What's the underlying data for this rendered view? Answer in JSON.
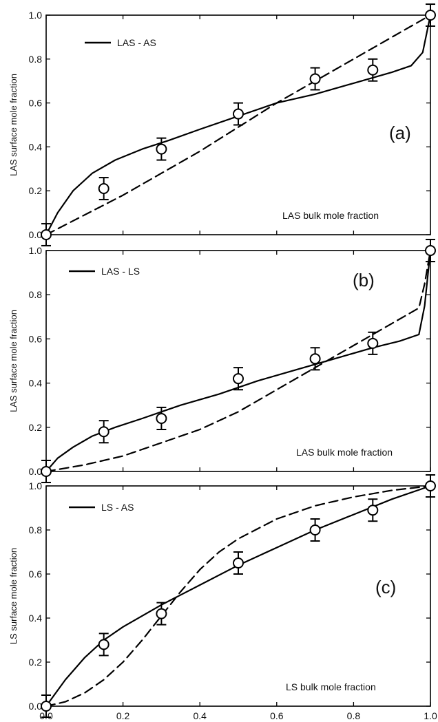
{
  "chart_data": [
    {
      "type": "line",
      "panel_label": "(a)",
      "legend_label": "LAS - AS",
      "ylabel": "LAS surface mole fraction",
      "xlabel_inset": "LAS bulk mole fraction",
      "xlim": [
        0,
        1
      ],
      "ylim": [
        0,
        1
      ],
      "yticks": [
        "0.0",
        "0.2",
        "0.4",
        "0.6",
        "0.8",
        "1.0"
      ],
      "legend_position": "top-left",
      "experimental": {
        "x": [
          0.0,
          0.15,
          0.3,
          0.5,
          0.7,
          0.85,
          1.0
        ],
        "y": [
          0.0,
          0.21,
          0.39,
          0.55,
          0.71,
          0.75,
          1.0
        ],
        "err": [
          0.05,
          0.05,
          0.05,
          0.05,
          0.05,
          0.05,
          0.05
        ]
      },
      "series": [
        {
          "style": "solid",
          "x": [
            0.0,
            0.03,
            0.07,
            0.12,
            0.18,
            0.25,
            0.32,
            0.4,
            0.5,
            0.6,
            0.7,
            0.8,
            0.9,
            0.95,
            0.98,
            1.0
          ],
          "y": [
            0.0,
            0.1,
            0.2,
            0.28,
            0.34,
            0.39,
            0.43,
            0.48,
            0.54,
            0.6,
            0.64,
            0.69,
            0.74,
            0.77,
            0.83,
            1.0
          ]
        },
        {
          "style": "dashed",
          "x": [
            0.0,
            0.2,
            0.4,
            0.6,
            0.8,
            1.0
          ],
          "y": [
            0.0,
            0.18,
            0.38,
            0.6,
            0.8,
            1.0
          ]
        }
      ]
    },
    {
      "type": "line",
      "panel_label": "(b)",
      "legend_label": "LAS - LS",
      "ylabel": "LAS surface mole fraction",
      "xlabel_inset": "LAS bulk mole fraction",
      "xlim": [
        0,
        1
      ],
      "ylim": [
        0,
        1
      ],
      "yticks": [
        "0.0",
        "0.2",
        "0.4",
        "0.6",
        "0.8",
        "1.0"
      ],
      "legend_position": "top-left",
      "experimental": {
        "x": [
          0.0,
          0.15,
          0.3,
          0.5,
          0.7,
          0.85,
          1.0
        ],
        "y": [
          0.0,
          0.18,
          0.24,
          0.42,
          0.51,
          0.58,
          1.0
        ],
        "err": [
          0.05,
          0.05,
          0.05,
          0.05,
          0.05,
          0.05,
          0.05
        ]
      },
      "series": [
        {
          "style": "solid",
          "x": [
            0.0,
            0.03,
            0.07,
            0.12,
            0.18,
            0.25,
            0.35,
            0.45,
            0.55,
            0.65,
            0.75,
            0.85,
            0.92,
            0.97,
            0.985,
            1.0
          ],
          "y": [
            0.0,
            0.06,
            0.11,
            0.16,
            0.2,
            0.24,
            0.3,
            0.35,
            0.41,
            0.46,
            0.51,
            0.56,
            0.59,
            0.62,
            0.75,
            1.0
          ]
        },
        {
          "style": "dashed",
          "x": [
            0.0,
            0.1,
            0.2,
            0.3,
            0.4,
            0.5,
            0.6,
            0.7,
            0.8,
            0.9,
            0.97,
            0.985,
            1.0
          ],
          "y": [
            0.0,
            0.03,
            0.07,
            0.13,
            0.19,
            0.27,
            0.37,
            0.47,
            0.57,
            0.67,
            0.74,
            0.85,
            1.0
          ]
        }
      ]
    },
    {
      "type": "line",
      "panel_label": "(c)",
      "legend_label": "LS - AS",
      "ylabel": "LS surface mole fraction",
      "xlabel_inset": "LS bulk mole fraction",
      "xlim": [
        0,
        1
      ],
      "ylim": [
        0,
        1
      ],
      "xticks": [
        "0.0",
        "0.2",
        "0.4",
        "0.6",
        "0.8",
        "1.0"
      ],
      "yticks": [
        "0.0",
        "0.2",
        "0.4",
        "0.6",
        "0.8",
        "1.0"
      ],
      "legend_position": "top-left",
      "experimental": {
        "x": [
          0.0,
          0.15,
          0.3,
          0.5,
          0.7,
          0.85,
          1.0
        ],
        "y": [
          0.0,
          0.28,
          0.42,
          0.65,
          0.8,
          0.89,
          1.0
        ],
        "err": [
          0.05,
          0.05,
          0.05,
          0.05,
          0.05,
          0.05,
          0.05
        ]
      },
      "series": [
        {
          "style": "solid",
          "x": [
            0.0,
            0.05,
            0.1,
            0.15,
            0.2,
            0.3,
            0.4,
            0.5,
            0.6,
            0.7,
            0.8,
            0.9,
            1.0
          ],
          "y": [
            0.0,
            0.12,
            0.22,
            0.3,
            0.36,
            0.46,
            0.55,
            0.64,
            0.72,
            0.8,
            0.87,
            0.94,
            1.0
          ]
        },
        {
          "style": "dashed",
          "x": [
            0.0,
            0.05,
            0.1,
            0.15,
            0.2,
            0.25,
            0.3,
            0.35,
            0.4,
            0.45,
            0.5,
            0.6,
            0.7,
            0.8,
            0.9,
            1.0
          ],
          "y": [
            0.0,
            0.02,
            0.06,
            0.12,
            0.2,
            0.3,
            0.41,
            0.52,
            0.62,
            0.7,
            0.76,
            0.85,
            0.91,
            0.95,
            0.98,
            1.0
          ]
        }
      ]
    }
  ]
}
